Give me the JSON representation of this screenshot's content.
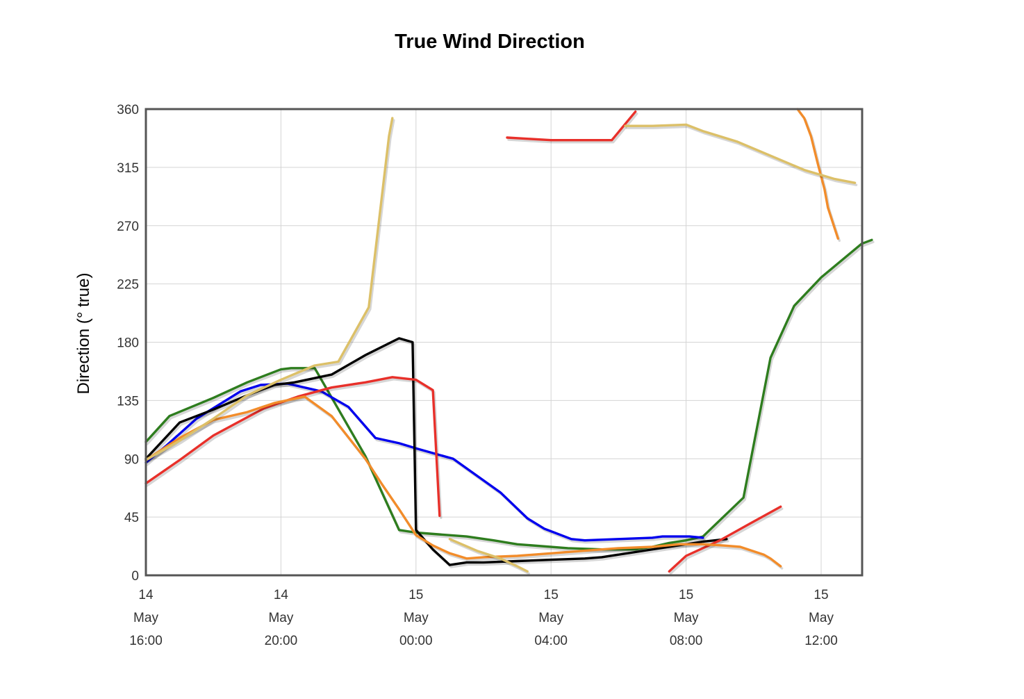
{
  "chart_data": {
    "type": "line",
    "title": "True Wind Direction",
    "xlabel": "",
    "ylabel": "Direction (° true)",
    "x_unit": "hours",
    "xlim": [
      0,
      21.5
    ],
    "ylim": [
      0,
      360
    ],
    "y_ticks": [
      0,
      45,
      90,
      135,
      180,
      225,
      270,
      315,
      360
    ],
    "x_ticks": [
      {
        "x": 0,
        "lines": [
          "14",
          "May",
          "16:00"
        ]
      },
      {
        "x": 4,
        "lines": [
          "14",
          "May",
          "20:00"
        ]
      },
      {
        "x": 8,
        "lines": [
          "15",
          "May",
          "00:00"
        ]
      },
      {
        "x": 12,
        "lines": [
          "15",
          "May",
          "04:00"
        ]
      },
      {
        "x": 16,
        "lines": [
          "15",
          "May",
          "08:00"
        ]
      },
      {
        "x": 20,
        "lines": [
          "15",
          "May",
          "12:00"
        ]
      }
    ],
    "grid": true,
    "legend": "none",
    "series": [
      {
        "color": "#2e7d1e",
        "segments": [
          [
            [
              0,
              103
            ],
            [
              0.7,
              123
            ],
            [
              2,
              137
            ],
            [
              3,
              149
            ],
            [
              4,
              159
            ],
            [
              4.3,
              160
            ],
            [
              5,
              160
            ],
            [
              6.5,
              92
            ],
            [
              7.5,
              35
            ],
            [
              8,
              33
            ],
            [
              9.5,
              30
            ],
            [
              10.3,
              27
            ],
            [
              11,
              24
            ],
            [
              12.5,
              21
            ],
            [
              13.5,
              20
            ],
            [
              14.5,
              20
            ],
            [
              15,
              22
            ],
            [
              15.5,
              25
            ],
            [
              16,
              27
            ],
            [
              16.5,
              30
            ],
            [
              17.7,
              60
            ],
            [
              18.5,
              168
            ],
            [
              19.2,
              208
            ],
            [
              20,
              230
            ],
            [
              21.2,
              256
            ],
            [
              21.5,
              259
            ]
          ]
        ]
      },
      {
        "color": "#0000ee",
        "segments": [
          [
            [
              0,
              87
            ],
            [
              0.6,
              100
            ],
            [
              1.5,
              121
            ],
            [
              2.8,
              142
            ],
            [
              3.4,
              147
            ],
            [
              4.2,
              148
            ],
            [
              5.2,
              142
            ],
            [
              6,
              130
            ],
            [
              6.8,
              106
            ],
            [
              7.5,
              102
            ],
            [
              8,
              98
            ],
            [
              9.1,
              90
            ],
            [
              10.5,
              64
            ],
            [
              11.3,
              44
            ],
            [
              11.8,
              36
            ],
            [
              12.6,
              28
            ],
            [
              13,
              27
            ],
            [
              14,
              28
            ],
            [
              15,
              29
            ],
            [
              15.3,
              30
            ],
            [
              16.1,
              30
            ],
            [
              16.5,
              29
            ]
          ]
        ]
      },
      {
        "color": "#000000",
        "segments": [
          [
            [
              0,
              90
            ],
            [
              1,
              118
            ],
            [
              2,
              128
            ],
            [
              3,
              139
            ],
            [
              3.8,
              147
            ],
            [
              4.4,
              149
            ],
            [
              5.5,
              155
            ],
            [
              6.5,
              170
            ],
            [
              7.5,
              183
            ],
            [
              7.9,
              180
            ],
            [
              8,
              35
            ],
            [
              8.5,
              20
            ],
            [
              9,
              8
            ],
            [
              9.5,
              10
            ],
            [
              10,
              10
            ],
            [
              11,
              11
            ],
            [
              12,
              12
            ],
            [
              13,
              13
            ],
            [
              13.5,
              14
            ],
            [
              14.5,
              18
            ],
            [
              15.5,
              22
            ],
            [
              16.5,
              26
            ],
            [
              17.2,
              28
            ]
          ]
        ]
      },
      {
        "color": "#e8302a",
        "segments": [
          [
            [
              0,
              71
            ],
            [
              1,
              89
            ],
            [
              2,
              108
            ],
            [
              3,
              122
            ],
            [
              3.5,
              129
            ],
            [
              4.5,
              138
            ],
            [
              5.5,
              145
            ],
            [
              6.5,
              149
            ],
            [
              7.3,
              153
            ],
            [
              8,
              151
            ],
            [
              8.5,
              143
            ],
            [
              8.7,
              46
            ]
          ],
          [
            [
              10.7,
              338
            ],
            [
              12,
              336
            ],
            [
              13,
              336
            ],
            [
              13.8,
              336
            ],
            [
              14.5,
              358
            ]
          ],
          [
            [
              15.5,
              3
            ],
            [
              16,
              15
            ],
            [
              17,
              27
            ],
            [
              17.9,
              40
            ],
            [
              18.8,
              53
            ]
          ]
        ]
      },
      {
        "color": "#f28c2a",
        "segments": [
          [
            [
              0,
              89
            ],
            [
              1,
              106
            ],
            [
              2,
              120
            ],
            [
              3,
              126
            ],
            [
              3.8,
              133
            ],
            [
              4.7,
              138
            ],
            [
              5.5,
              123
            ],
            [
              6.5,
              90
            ],
            [
              7,
              70
            ],
            [
              7.5,
              51
            ],
            [
              8,
              31
            ],
            [
              8.5,
              23
            ],
            [
              9,
              17
            ],
            [
              9.5,
              13
            ],
            [
              10,
              14
            ],
            [
              11,
              15
            ],
            [
              12,
              17
            ],
            [
              13,
              19
            ],
            [
              14,
              21
            ],
            [
              15,
              22
            ],
            [
              15.8,
              24
            ],
            [
              16.5,
              24
            ],
            [
              17.1,
              23
            ],
            [
              17.6,
              22
            ],
            [
              18.3,
              16
            ],
            [
              18.5,
              13
            ],
            [
              18.8,
              7
            ]
          ],
          [
            [
              19.3,
              360
            ],
            [
              19.5,
              353
            ],
            [
              19.7,
              339
            ],
            [
              19.9,
              318
            ],
            [
              20.1,
              298
            ],
            [
              20.2,
              284
            ],
            [
              20.4,
              268
            ],
            [
              20.5,
              260
            ]
          ]
        ]
      },
      {
        "color": "#dcc068",
        "segments": [
          [
            [
              0,
              89
            ],
            [
              1,
              104
            ],
            [
              2,
              121
            ],
            [
              3,
              139
            ],
            [
              4,
              151
            ],
            [
              5,
              162
            ],
            [
              5.7,
              165
            ],
            [
              6.6,
              207
            ],
            [
              7.2,
              339
            ],
            [
              7.3,
              353
            ]
          ],
          [
            [
              9,
              28
            ],
            [
              9.8,
              19
            ],
            [
              10.5,
              13
            ],
            [
              11,
              7
            ],
            [
              11.3,
              3
            ]
          ],
          [
            [
              14.2,
              347
            ],
            [
              15,
              347
            ],
            [
              16,
              348
            ],
            [
              16.5,
              343
            ],
            [
              17.5,
              335
            ],
            [
              18.5,
              324
            ],
            [
              19.5,
              313
            ],
            [
              20.4,
              306
            ],
            [
              21,
              303
            ]
          ]
        ]
      }
    ]
  }
}
